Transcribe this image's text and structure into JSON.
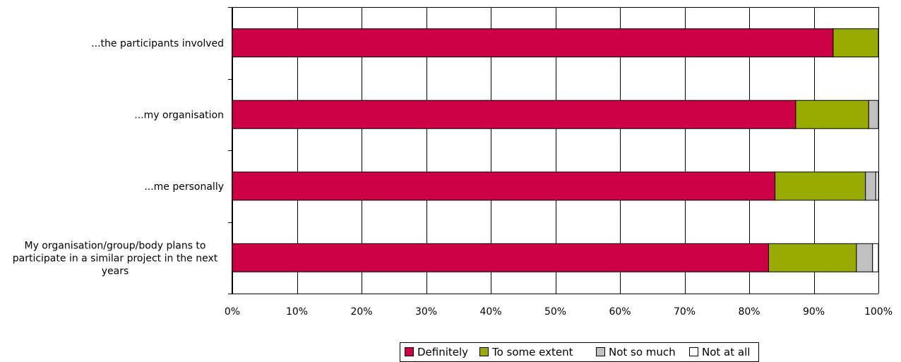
{
  "chart_data": {
    "type": "bar",
    "orientation": "horizontal",
    "stacked": true,
    "percent": true,
    "categories": [
      "...the participants involved",
      "...my organisation",
      "...me personally",
      "My organisation/group/body plans to participate in a similar project in the next years"
    ],
    "category_lines": [
      [
        "...the participants involved"
      ],
      [
        "...my organisation"
      ],
      [
        "...me personally"
      ],
      [
        "My organisation/group/body plans to",
        "participate in a similar project in the next",
        "years"
      ]
    ],
    "series": [
      {
        "name": "Definitely",
        "color": "#cc0044",
        "values": [
          93.0,
          87.2,
          84.0,
          83.0
        ]
      },
      {
        "name": "To some extent",
        "color": "#99aa00",
        "values": [
          7.0,
          11.3,
          14.0,
          13.6
        ]
      },
      {
        "name": "Not so much",
        "color": "#c0c0c0",
        "values": [
          0.0,
          1.5,
          1.6,
          2.5
        ]
      },
      {
        "name": "Not at all",
        "color": "#ffffff",
        "values": [
          0.0,
          0.0,
          0.4,
          0.9
        ]
      }
    ],
    "xlim": [
      0,
      100
    ],
    "x_ticks": [
      "0%",
      "10%",
      "20%",
      "30%",
      "40%",
      "50%",
      "60%",
      "70%",
      "80%",
      "90%",
      "100%"
    ],
    "grid": true,
    "legend_position": "bottom"
  }
}
